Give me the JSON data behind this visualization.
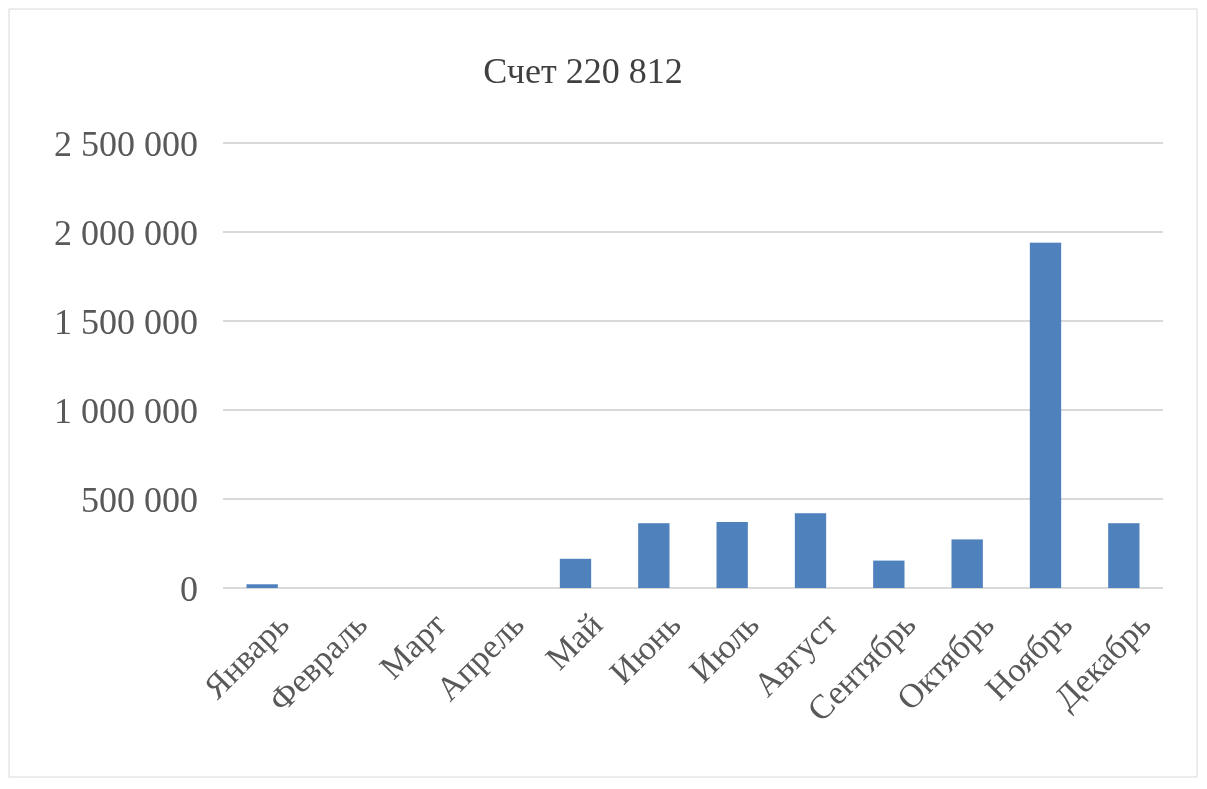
{
  "chart_data": {
    "type": "bar",
    "title": "Счет 220 812",
    "categories": [
      "Январь",
      "Февраль",
      "Март",
      "Апрель",
      "Май",
      "Июнь",
      "Июль",
      "Август",
      "Сентябрь",
      "Октябрь",
      "Ноябрь",
      "Декабрь"
    ],
    "values": [
      21000,
      0,
      0,
      0,
      164000,
      364000,
      371000,
      420000,
      154000,
      273000,
      1940000,
      364000
    ],
    "color": "#4f81bd",
    "ylim": [
      0,
      2500000
    ],
    "yticks": [
      {
        "value": 0,
        "label": "0"
      },
      {
        "value": 500000,
        "label": "500 000"
      },
      {
        "value": 1000000,
        "label": "1 000 000"
      },
      {
        "value": 1500000,
        "label": "1 500 000"
      },
      {
        "value": 2000000,
        "label": "2 000 000"
      },
      {
        "value": 2500000,
        "label": "2 500 000"
      }
    ],
    "grid": true
  }
}
